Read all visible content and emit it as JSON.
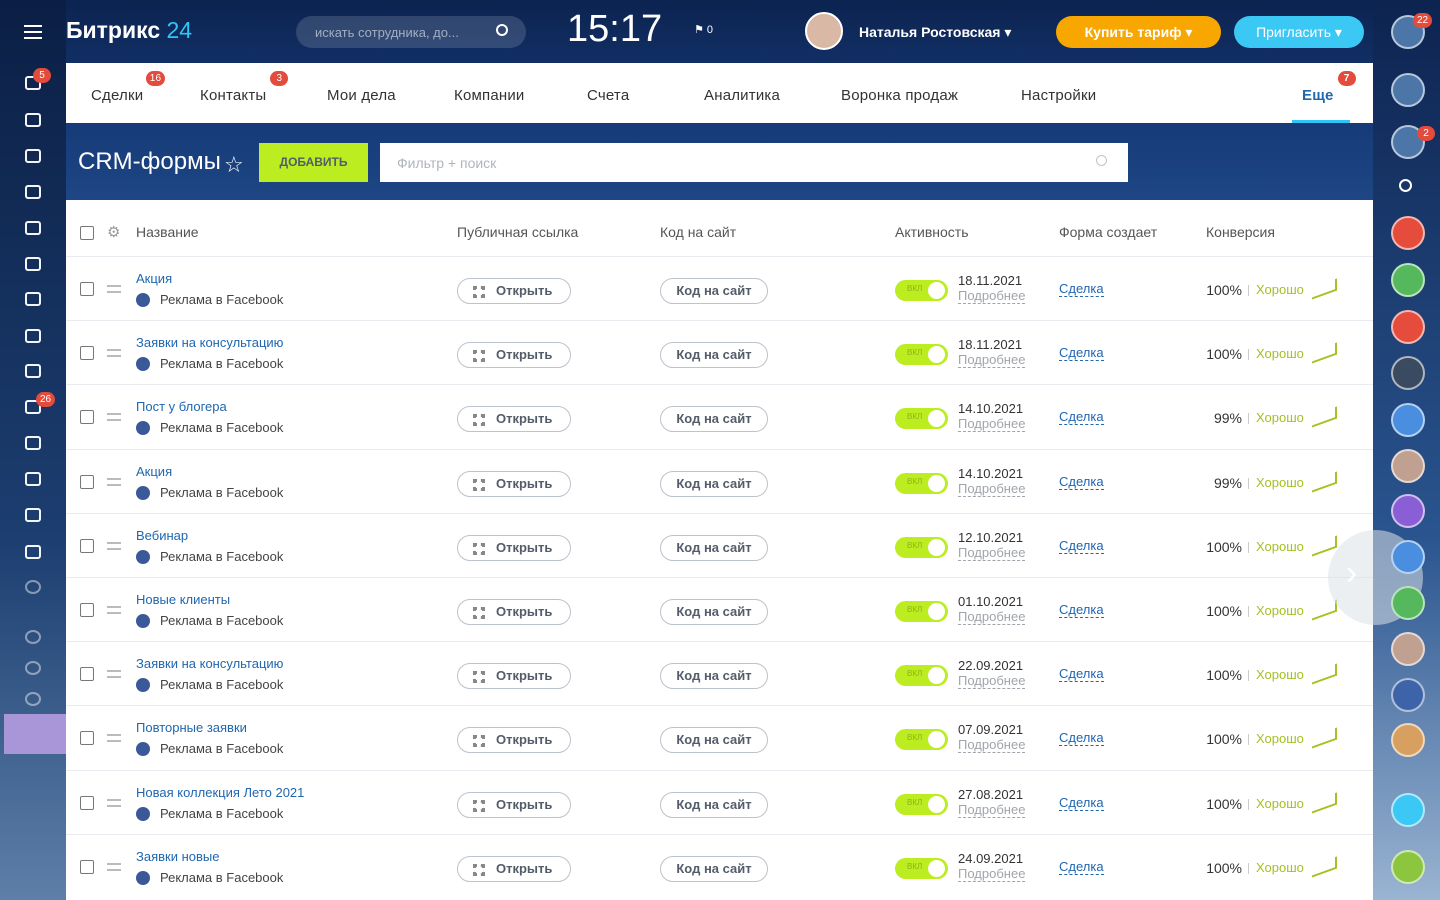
{
  "header": {
    "logo": "Битрикс",
    "logo_suffix": "24",
    "search_placeholder": "искать сотрудника, до...",
    "time": "15:17",
    "flag_count": "0",
    "user_name": "Наталья Ростовская",
    "buy_button": "Купить тариф",
    "invite_button": "Пригласить"
  },
  "left_sidebar": {
    "badges": [
      "5",
      "26"
    ]
  },
  "right_sidebar": {
    "badges": [
      "22",
      "2"
    ]
  },
  "nav": {
    "tabs": [
      {
        "label": "Сделки",
        "badge": "16"
      },
      {
        "label": "Контакты",
        "badge": "3"
      },
      {
        "label": "Мои дела"
      },
      {
        "label": "Компании"
      },
      {
        "label": "Счета"
      },
      {
        "label": "Аналитика"
      },
      {
        "label": "Воронка продаж"
      },
      {
        "label": "Настройки"
      },
      {
        "label": "Еще",
        "badge": "7"
      }
    ]
  },
  "page": {
    "title": "CRM-формы",
    "add_button": "ДОБАВИТЬ",
    "filter_placeholder": "Фильтр + поиск"
  },
  "table": {
    "columns": [
      "Название",
      "Публичная ссылка",
      "Код на сайт",
      "Активность",
      "Форма создает",
      "Конверсия"
    ],
    "rows": [
      {
        "name": "Акция",
        "source": "Реклама в Facebook",
        "public_link": "Открыть",
        "site_code": "Код на сайт",
        "toggle": "вкл",
        "date": "18.11.2021",
        "details": "Подробнее",
        "creates": "Сделка",
        "conversion": "100%",
        "quality": "Хорошо"
      },
      {
        "name": "Заявки на консультацию",
        "source": "Реклама в Facebook",
        "public_link": "Открыть",
        "site_code": "Код на сайт",
        "toggle": "вкл",
        "date": "18.11.2021",
        "details": "Подробнее",
        "creates": "Сделка",
        "conversion": "100%",
        "quality": "Хорошо"
      },
      {
        "name": "Пост у блогера",
        "source": "Реклама в Facebook",
        "public_link": "Открыть",
        "site_code": "Код на сайт",
        "toggle": "вкл",
        "date": "14.10.2021",
        "details": "Подробнее",
        "creates": "Сделка",
        "conversion": "99%",
        "quality": "Хорошо"
      },
      {
        "name": "Акция",
        "source": "Реклама в Facebook",
        "public_link": "Открыть",
        "site_code": "Код на сайт",
        "toggle": "вкл",
        "date": "14.10.2021",
        "details": "Подробнее",
        "creates": "Сделка",
        "conversion": "99%",
        "quality": "Хорошо"
      },
      {
        "name": "Вебинар",
        "source": "Реклама в Facebook",
        "public_link": "Открыть",
        "site_code": "Код на сайт",
        "toggle": "вкл",
        "date": "12.10.2021",
        "details": "Подробнее",
        "creates": "Сделка",
        "conversion": "100%",
        "quality": "Хорошо"
      },
      {
        "name": "Новые клиенты",
        "source": "Реклама в Facebook",
        "public_link": "Открыть",
        "site_code": "Код на сайт",
        "toggle": "вкл",
        "date": "01.10.2021",
        "details": "Подробнее",
        "creates": "Сделка",
        "conversion": "100%",
        "quality": "Хорошо"
      },
      {
        "name": "Заявки на консультацию",
        "source": "Реклама в Facebook",
        "public_link": "Открыть",
        "site_code": "Код на сайт",
        "toggle": "вкл",
        "date": "22.09.2021",
        "details": "Подробнее",
        "creates": "Сделка",
        "conversion": "100%",
        "quality": "Хорошо"
      },
      {
        "name": "Повторные заявки",
        "source": "Реклама в Facebook",
        "public_link": "Открыть",
        "site_code": "Код на сайт",
        "toggle": "вкл",
        "date": "07.09.2021",
        "details": "Подробнее",
        "creates": "Сделка",
        "conversion": "100%",
        "quality": "Хорошо"
      },
      {
        "name": "Новая коллекция Лето 2021",
        "source": "Реклама в Facebook",
        "public_link": "Открыть",
        "site_code": "Код на сайт",
        "toggle": "вкл",
        "date": "27.08.2021",
        "details": "Подробнее",
        "creates": "Сделка",
        "conversion": "100%",
        "quality": "Хорошо"
      },
      {
        "name": "Заявки новые",
        "source": "Реклама в Facebook",
        "public_link": "Открыть",
        "site_code": "Код на сайт",
        "toggle": "вкл",
        "date": "24.09.2021",
        "details": "Подробнее",
        "creates": "Сделка",
        "conversion": "100%",
        "quality": "Хорошо"
      }
    ]
  }
}
